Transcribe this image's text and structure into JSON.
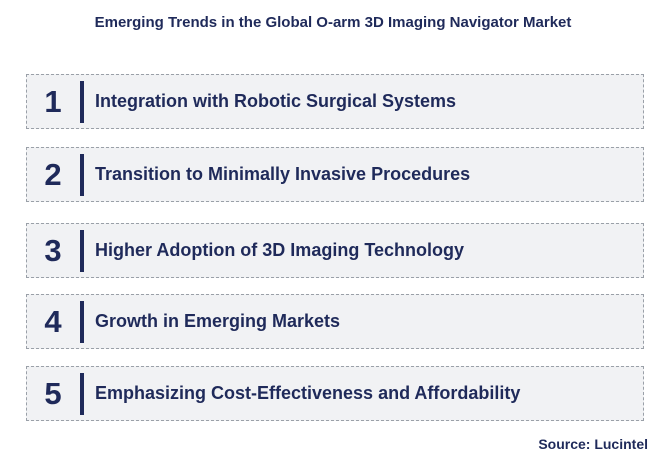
{
  "title": "Emerging Trends in the Global O-arm 3D Imaging Navigator Market",
  "trends": [
    {
      "number": "1",
      "label": "Integration with Robotic Surgical Systems"
    },
    {
      "number": "2",
      "label": "Transition to Minimally Invasive Procedures"
    },
    {
      "number": "3",
      "label": "Higher Adoption of 3D Imaging Technology"
    },
    {
      "number": "4",
      "label": "Growth in Emerging Markets"
    },
    {
      "number": "5",
      "label": "Emphasizing Cost-Effectiveness and Affordability"
    }
  ],
  "source": "Source: Lucintel",
  "colors": {
    "text": "#1f2a5a",
    "box_bg": "#f1f2f4",
    "box_border": "#9aa0a8"
  }
}
